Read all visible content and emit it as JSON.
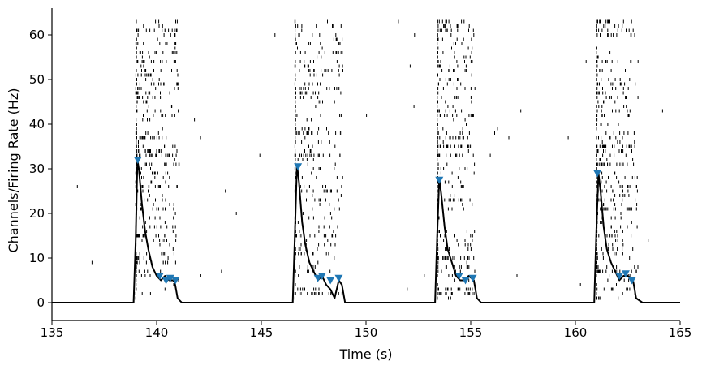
{
  "chart_data": {
    "type": "line",
    "xlabel": "Time (s)",
    "ylabel": "Channels/Firing Rate (Hz)",
    "xlim": [
      135,
      165
    ],
    "ylim": [
      -4,
      66
    ],
    "xticks": [
      135,
      140,
      145,
      150,
      155,
      160,
      165
    ],
    "yticks": [
      0,
      10,
      20,
      30,
      40,
      50,
      60
    ],
    "grid": false,
    "legend": "none",
    "colors": {
      "line": "#000000",
      "spikes": "#000000",
      "peak_markers": "#1f77b4"
    },
    "series": [
      {
        "type": "line",
        "x": [
          135,
          138.9,
          139.0,
          139.08,
          139.15,
          139.3,
          139.45,
          139.6,
          139.8,
          140.0,
          140.2,
          140.4,
          140.6,
          140.85,
          141.0,
          141.2,
          141.5,
          146.5,
          146.6,
          146.7,
          146.8,
          146.95,
          147.1,
          147.3,
          147.5,
          147.7,
          147.9,
          148.1,
          148.3,
          148.5,
          148.7,
          148.85,
          149.0,
          149.2,
          153.3,
          153.4,
          153.5,
          153.6,
          153.75,
          153.9,
          154.1,
          154.3,
          154.5,
          154.7,
          154.9,
          155.15,
          155.3,
          155.5,
          160.9,
          161.0,
          161.1,
          161.2,
          161.35,
          161.5,
          161.7,
          161.9,
          162.1,
          162.3,
          162.5,
          162.75,
          162.9,
          163.2,
          165
        ],
        "y": [
          0,
          0,
          14,
          32,
          30,
          22,
          16,
          12,
          8,
          6,
          5,
          6,
          5,
          5,
          1,
          0,
          0,
          0,
          15,
          31,
          27,
          18,
          13,
          9,
          7,
          5,
          6,
          4,
          3,
          1,
          5,
          4,
          0,
          0,
          0,
          15,
          28,
          24,
          17,
          12,
          9,
          6,
          5,
          5,
          6,
          5,
          1,
          0,
          0,
          16,
          29,
          25,
          17,
          12,
          9,
          7,
          5,
          6,
          6,
          5,
          1,
          0,
          0
        ]
      }
    ],
    "peaks": {
      "x": [
        139.1,
        140.15,
        140.45,
        140.65,
        140.9,
        146.75,
        147.7,
        147.9,
        148.3,
        148.7,
        153.5,
        154.45,
        154.75,
        155.1,
        161.05,
        162.1,
        162.4,
        162.7
      ],
      "y": [
        32,
        6,
        5,
        5.5,
        5,
        30.5,
        5.5,
        6,
        5,
        5.5,
        27.5,
        6,
        5,
        5.5,
        29,
        6,
        6.5,
        5
      ]
    },
    "raster": {
      "bursts": [
        {
          "start": 139.0,
          "end": 141.1
        },
        {
          "start": 146.6,
          "end": 148.9
        },
        {
          "start": 153.4,
          "end": 155.2
        },
        {
          "start": 161.0,
          "end": 163.0
        }
      ],
      "channels": 63
    }
  }
}
